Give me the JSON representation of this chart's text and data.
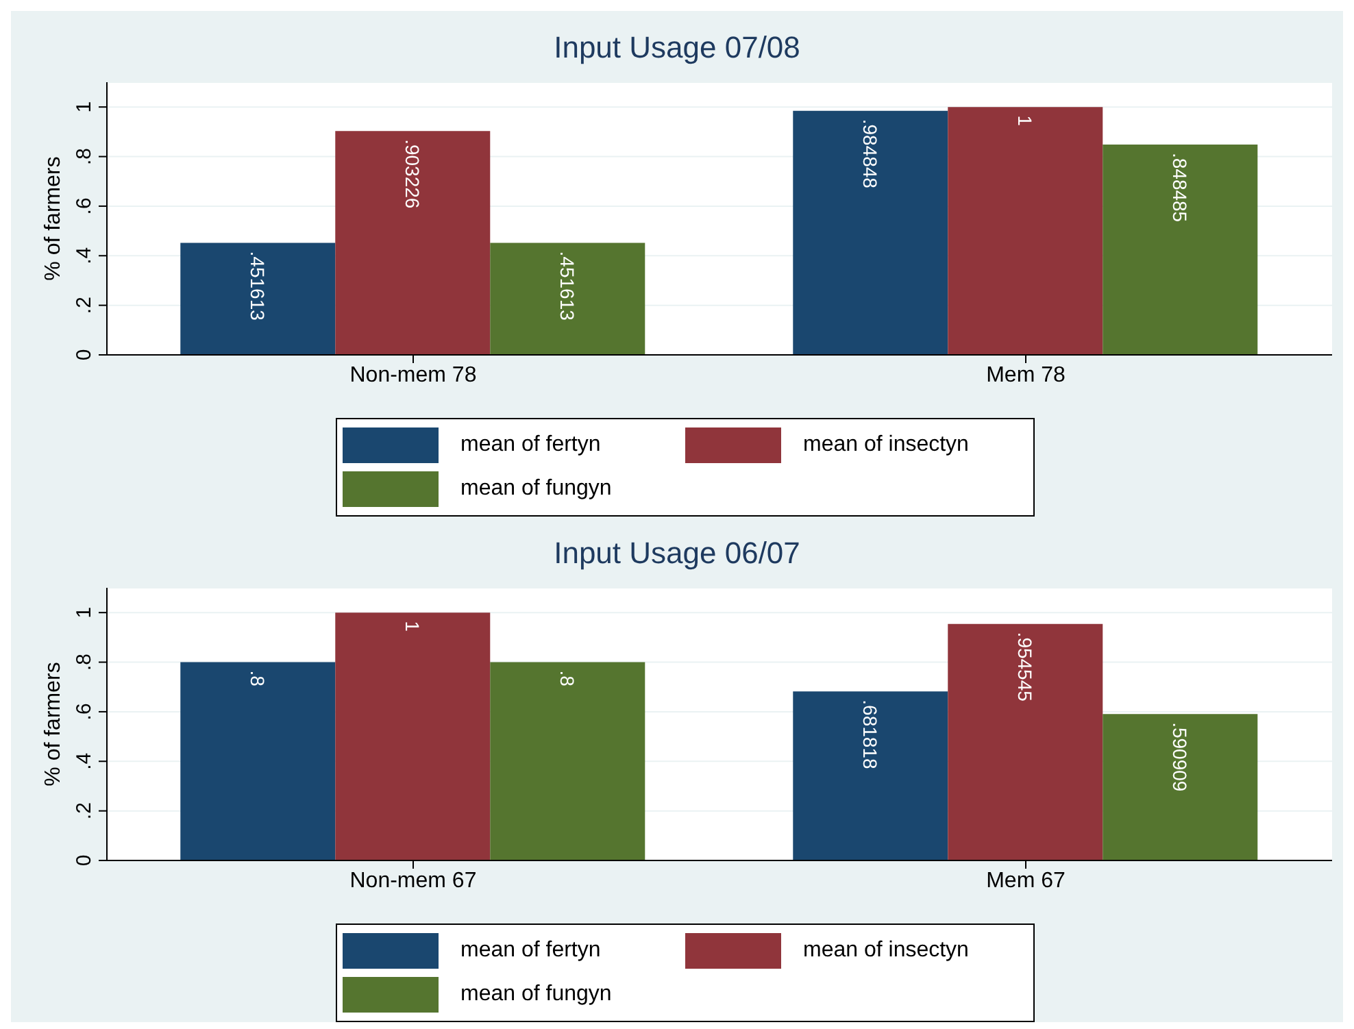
{
  "chart_data": [
    {
      "type": "bar",
      "title": "Input Usage 07/08",
      "ylabel": "% of farmers",
      "categories": [
        "Non-mem 78",
        "Mem 78"
      ],
      "yticks": [
        {
          "value": 0,
          "label": "0"
        },
        {
          "value": 0.2,
          "label": ".2"
        },
        {
          "value": 0.4,
          "label": ".4"
        },
        {
          "value": 0.6,
          "label": ".6"
        },
        {
          "value": 0.8,
          "label": ".8"
        },
        {
          "value": 1,
          "label": "1"
        }
      ],
      "series": [
        {
          "name": "mean of fertyn",
          "color": "#1a476f",
          "values": [
            0.451613,
            0.984848
          ],
          "value_labels": [
            ".451613",
            ".984848"
          ]
        },
        {
          "name": "mean of insectyn",
          "color": "#90353b",
          "values": [
            0.903226,
            1
          ],
          "value_labels": [
            ".903226",
            "1"
          ]
        },
        {
          "name": "mean of fungyn",
          "color": "#55752f",
          "values": [
            0.451613,
            0.848485
          ],
          "value_labels": [
            ".451613",
            ".848485"
          ]
        }
      ],
      "ylim": [
        0,
        1.1
      ],
      "grid": "y",
      "legend": "bottom"
    },
    {
      "type": "bar",
      "title": "Input Usage 06/07",
      "ylabel": "% of farmers",
      "categories": [
        "Non-mem 67",
        "Mem 67"
      ],
      "series": [
        {
          "name": "mean of fertyn",
          "color": "#1a476f",
          "values": [
            0.8,
            0.681818
          ],
          "value_labels": [
            ".8",
            ".681818"
          ]
        },
        {
          "name": "mean of insectyn",
          "color": "#90353b",
          "values": [
            1,
            0.954545
          ],
          "value_labels": [
            "1",
            ".954545"
          ]
        },
        {
          "name": "mean of fungyn",
          "color": "#55752f",
          "values": [
            0.8,
            0.590909
          ],
          "value_labels": [
            ".8",
            ".590909"
          ]
        }
      ],
      "ylim": [
        0,
        1.1
      ],
      "yticks": [
        {
          "value": 0,
          "label": "0"
        },
        {
          "value": 0.2,
          "label": ".2"
        },
        {
          "value": 0.4,
          "label": ".4"
        },
        {
          "value": 0.6,
          "label": ".6"
        },
        {
          "value": 0.8,
          "label": ".8"
        },
        {
          "value": 1,
          "label": "1"
        }
      ],
      "grid": "y",
      "legend": "bottom"
    }
  ]
}
